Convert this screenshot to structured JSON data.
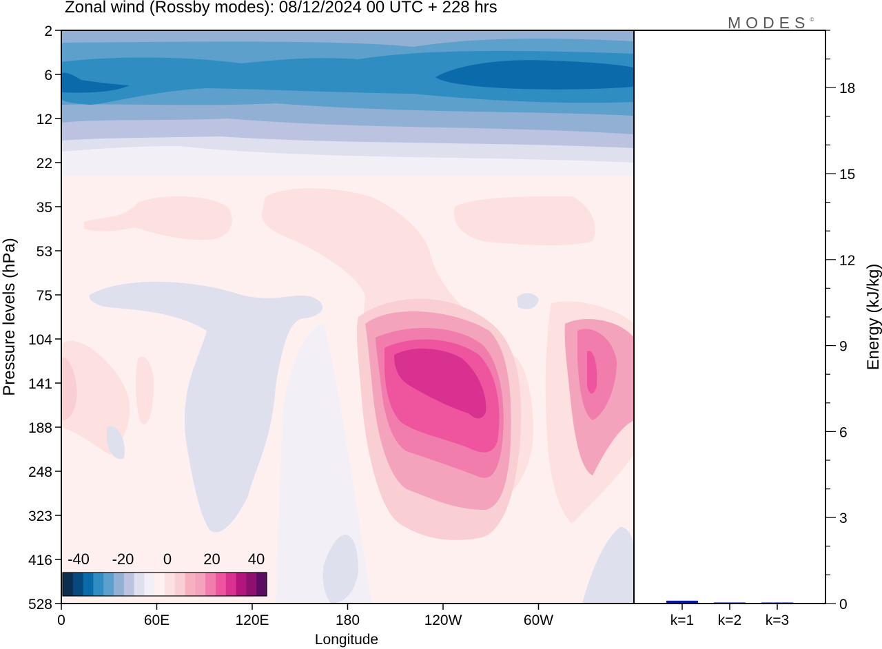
{
  "chart_data": [
    {
      "type": "heatmap",
      "title": "Zonal wind (Rossby modes):  08/12/2024  00 UTC  + 228 hrs",
      "xlabel": "Longitude",
      "ylabel": "Pressure levels (hPa)",
      "x_ticks": [
        "0",
        "60E",
        "120E",
        "180",
        "120W",
        "60W"
      ],
      "y_ticks": [
        "2",
        "6",
        "12",
        "22",
        "35",
        "53",
        "75",
        "104",
        "141",
        "188",
        "248",
        "323",
        "416",
        "528"
      ],
      "colorbar": {
        "labels": [
          "-40",
          "-20",
          "0",
          "20",
          "40"
        ],
        "colors": [
          "#0b2e4f",
          "#08497d",
          "#0b6aa9",
          "#2f8dc2",
          "#5da0cb",
          "#92b0d4",
          "#bbc3e1",
          "#dfe0ee",
          "#f3eff6",
          "#fff0f0",
          "#fde0e0",
          "#f9cfd3",
          "#f6b0c0",
          "#f4a3bc",
          "#f07dab",
          "#ee559e",
          "#d8318f",
          "#b2167d",
          "#8e0f6e",
          "#5c0b63"
        ]
      },
      "features": [
        {
          "kind": "easterly-jet",
          "levels": "2-22 hPa",
          "core": "6-8 hPa",
          "approx_min": -30
        },
        {
          "kind": "westerly-max",
          "longitude": "110W-140W",
          "level": "141 hPa",
          "approx_max": 25
        },
        {
          "kind": "westerly-max",
          "longitude": "20W-40W",
          "level": "141 hPa",
          "approx_max": 20
        }
      ]
    },
    {
      "type": "bar",
      "ylabel": "Energy (kJ/kg)",
      "categories": [
        "k=1",
        "k=2",
        "k=3"
      ],
      "values": [
        0.1,
        0.02,
        0.01
      ],
      "ylim": [
        0,
        20
      ],
      "y_ticks": [
        "0",
        "3",
        "6",
        "9",
        "12",
        "15",
        "18"
      ],
      "bar_color": "#0a1aa0"
    }
  ],
  "brand": "MODES",
  "brand_mark": "©"
}
